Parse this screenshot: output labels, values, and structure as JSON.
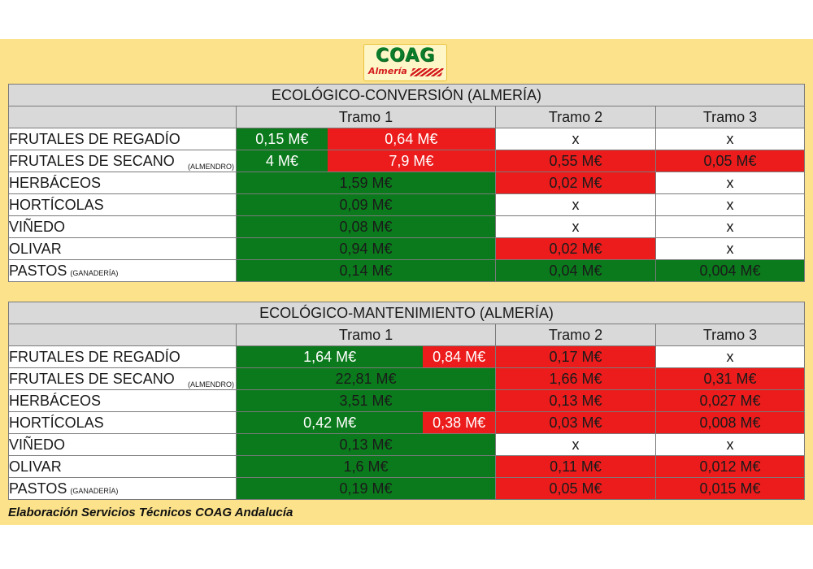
{
  "logo": {
    "brand": "COAG",
    "region": "Almería"
  },
  "tables": [
    {
      "title": "ECOLÓGICO-CONVERSIÓN (ALMERÍA)",
      "headers": [
        "Tramo 1",
        "Tramo 2",
        "Tramo 3"
      ],
      "rows": [
        {
          "crop": "FRUTALES DE REGADÍO",
          "note": "",
          "t1": {
            "split": true,
            "left": "0,15 M€",
            "left_color": "green",
            "right": "0,64 M€",
            "right_color": "red"
          },
          "t2": "x",
          "t2_color": "white",
          "t3": "x",
          "t3_color": "white"
        },
        {
          "crop": "FRUTALES DE SECANO",
          "note": "(ALMENDRO)",
          "t1": {
            "split": true,
            "left": "4 M€",
            "left_color": "green",
            "right": "7,9 M€",
            "right_color": "red"
          },
          "t2": "0,55 M€",
          "t2_color": "red",
          "t3": "0,05 M€",
          "t3_color": "red"
        },
        {
          "crop": "HERBÁCEOS",
          "note": "",
          "t1": {
            "split": false,
            "value": "1,59 M€",
            "color": "green"
          },
          "t2": "0,02 M€",
          "t2_color": "red",
          "t3": "x",
          "t3_color": "white"
        },
        {
          "crop": "HORTÍCOLAS",
          "note": "",
          "t1": {
            "split": false,
            "value": "0,09 M€",
            "color": "green"
          },
          "t2": "x",
          "t2_color": "white",
          "t3": "x",
          "t3_color": "white"
        },
        {
          "crop": "VIÑEDO",
          "note": "",
          "t1": {
            "split": false,
            "value": "0,08 M€",
            "color": "green"
          },
          "t2": "x",
          "t2_color": "white",
          "t3": "x",
          "t3_color": "white"
        },
        {
          "crop": "OLIVAR",
          "note": "",
          "t1": {
            "split": false,
            "value": "0,94 M€",
            "color": "green"
          },
          "t2": "0,02 M€",
          "t2_color": "red",
          "t3": "x",
          "t3_color": "white"
        },
        {
          "crop": "PASTOS",
          "note": "(GANADERÍA)",
          "t1": {
            "split": false,
            "value": "0,14 M€",
            "color": "green"
          },
          "t2": "0,04 M€",
          "t2_color": "green",
          "t3": "0,004 M€",
          "t3_color": "green"
        }
      ]
    },
    {
      "title": "ECOLÓGICO-MANTENIMIENTO (ALMERÍA)",
      "headers": [
        "Tramo 1",
        "Tramo 2",
        "Tramo 3"
      ],
      "rows": [
        {
          "crop": "FRUTALES DE REGADÍO",
          "note": "",
          "t1": {
            "split": true,
            "left": "1,64 M€",
            "left_color": "green",
            "right": "0,84 M€",
            "right_color": "red"
          },
          "t2": "0,17 M€",
          "t2_color": "red",
          "t3": "x",
          "t3_color": "white"
        },
        {
          "crop": "FRUTALES DE SECANO",
          "note": "(ALMENDRO)",
          "t1": {
            "split": false,
            "value": "22,81 M€",
            "color": "green"
          },
          "t2": "1,66 M€",
          "t2_color": "red",
          "t3": "0,31 M€",
          "t3_color": "red"
        },
        {
          "crop": "HERBÁCEOS",
          "note": "",
          "t1": {
            "split": false,
            "value": "3,51 M€",
            "color": "green"
          },
          "t2": "0,13 M€",
          "t2_color": "red",
          "t3": "0,027 M€",
          "t3_color": "red"
        },
        {
          "crop": "HORTÍCOLAS",
          "note": "",
          "t1": {
            "split": true,
            "left": "0,42 M€",
            "left_color": "green",
            "right": "0,38 M€",
            "right_color": "red"
          },
          "t2": "0,03 M€",
          "t2_color": "red",
          "t3": "0,008 M€",
          "t3_color": "red"
        },
        {
          "crop": "VIÑEDO",
          "note": "",
          "t1": {
            "split": false,
            "value": "0,13 M€",
            "color": "green"
          },
          "t2": "x",
          "t2_color": "white",
          "t3": "x",
          "t3_color": "white"
        },
        {
          "crop": "OLIVAR",
          "note": "",
          "t1": {
            "split": false,
            "value": "1,6 M€",
            "color": "green"
          },
          "t2": "0,11 M€",
          "t2_color": "red",
          "t3": "0,012 M€",
          "t3_color": "red"
        },
        {
          "crop": "PASTOS",
          "note": "(GANADERÍA)",
          "t1": {
            "split": false,
            "value": "0,19 M€",
            "color": "green"
          },
          "t2": "0,05 M€",
          "t2_color": "red",
          "t3": "0,015 M€",
          "t3_color": "red"
        }
      ]
    }
  ],
  "colors": {
    "green": "#0b7a1c",
    "red": "#ec1c1c",
    "white": "#ffffff",
    "header": "#d9d9d9",
    "background": "#fce28a"
  },
  "credit": "Elaboración Servicios Técnicos COAG Andalucía"
}
